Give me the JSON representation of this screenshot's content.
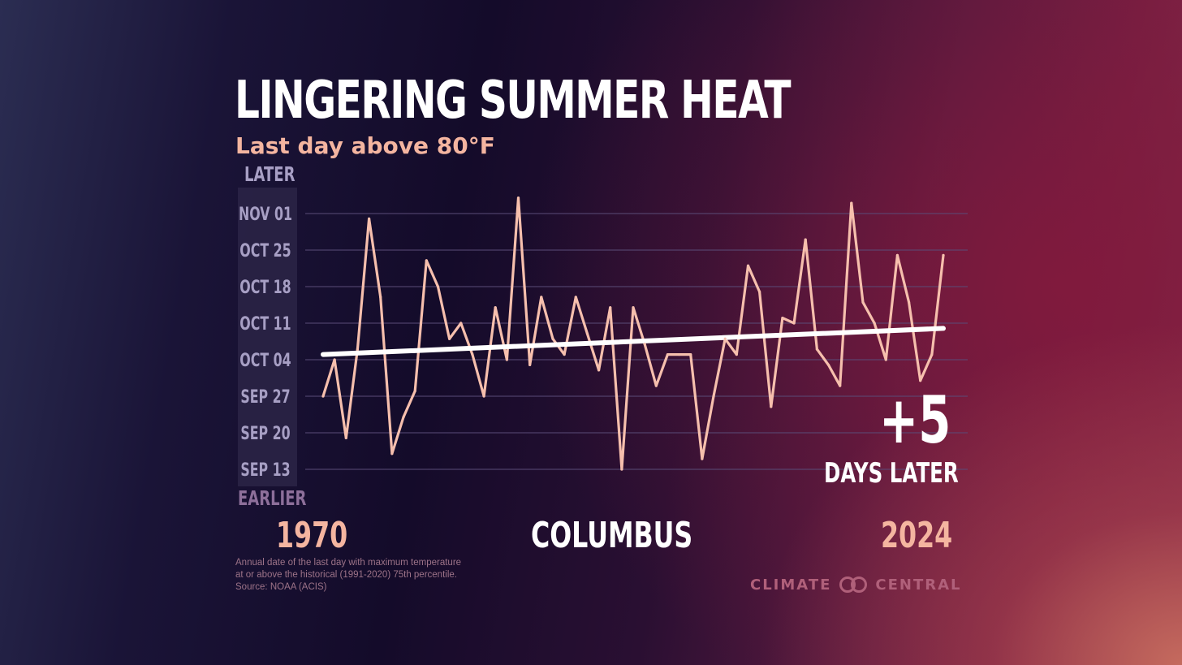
{
  "header": {
    "title": "LINGERING SUMMER HEAT",
    "subtitle": "Last day above 80°F"
  },
  "axis_labels": {
    "top": "LATER",
    "bottom": "EARLIER"
  },
  "annotation": {
    "value": "+5",
    "label": "DAYS LATER"
  },
  "x_labels": {
    "start": "1970",
    "end": "2024"
  },
  "location": "COLUMBUS",
  "footnote": {
    "line1": "Annual date of the last day with maximum temperature",
    "line2": "at or above the historical (1991-2020) 75th percentile.",
    "line3": "Source: NOAA (ACIS)"
  },
  "logo": {
    "text_left": "CLIMATE",
    "text_right": "CENTRAL"
  },
  "colors": {
    "series_line": "#f6bfad",
    "trend_line": "#ffffff",
    "gridline": "#5a4c78",
    "axis_panel": "#2c2447",
    "tick_text": "#a79fc4",
    "year_text": "#f4b5a0"
  },
  "chart_data": {
    "type": "line",
    "title": "LINGERING SUMMER HEAT",
    "subtitle": "Last day above 80°F",
    "xlabel": "",
    "ylabel": "",
    "x": [
      1970,
      1971,
      1972,
      1973,
      1974,
      1975,
      1976,
      1977,
      1978,
      1979,
      1980,
      1981,
      1982,
      1983,
      1984,
      1985,
      1986,
      1987,
      1988,
      1989,
      1990,
      1991,
      1992,
      1993,
      1994,
      1995,
      1996,
      1997,
      1998,
      1999,
      2000,
      2001,
      2002,
      2003,
      2004,
      2005,
      2006,
      2007,
      2008,
      2009,
      2010,
      2011,
      2012,
      2013,
      2014,
      2015,
      2016,
      2017,
      2018,
      2019,
      2020,
      2021,
      2022,
      2023,
      2024
    ],
    "y": [
      "Sep 27",
      "Oct 04",
      "Sep 19",
      "Oct 06",
      "Oct 31",
      "Oct 16",
      "Sep 16",
      "Sep 23",
      "Sep 28",
      "Oct 23",
      "Oct 18",
      "Oct 08",
      "Oct 11",
      "Oct 05",
      "Sep 27",
      "Oct 14",
      "Oct 04",
      "Nov 04",
      "Oct 03",
      "Oct 16",
      "Oct 08",
      "Oct 05",
      "Oct 16",
      "Oct 09",
      "Oct 02",
      "Oct 14",
      "Sep 13",
      "Oct 14",
      "Oct 07",
      "Sep 29",
      "Oct 05",
      "Oct 05",
      "Oct 05",
      "Sep 15",
      "Sep 27",
      "Oct 08",
      "Oct 05",
      "Oct 22",
      "Oct 17",
      "Sep 25",
      "Oct 12",
      "Oct 11",
      "Oct 27",
      "Oct 06",
      "Oct 03",
      "Sep 29",
      "Nov 03",
      "Oct 15",
      "Oct 11",
      "Oct 04",
      "Oct 24",
      "Oct 15",
      "Sep 30",
      "Oct 05",
      "Oct 24"
    ],
    "trend": {
      "start": [
        "1970",
        "Oct 05"
      ],
      "end": [
        "2024",
        "Oct 10"
      ],
      "change_days": 5
    },
    "y_ticks": [
      "SEP 13",
      "SEP 20",
      "SEP 27",
      "OCT 04",
      "OCT 11",
      "OCT 18",
      "OCT 25",
      "NOV 01"
    ],
    "ylim": [
      "Sep 13",
      "Nov 01"
    ],
    "grid": true,
    "legend": "none"
  }
}
